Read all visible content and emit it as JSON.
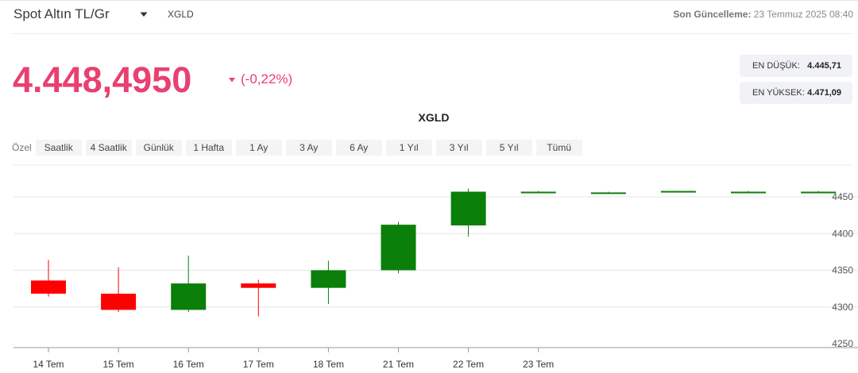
{
  "header": {
    "title": "Spot Altın TL/Gr",
    "symbol": "XGLD",
    "update_label": "Son Güncelleme:",
    "update_value": "23 Temmuz 2025 08:40"
  },
  "quote": {
    "price": "4.448,4950",
    "change": "(-0,22%)",
    "low_label": "EN DÜŞÜK:",
    "low_value": "4.445,71",
    "high_label": "EN YÜKSEK:",
    "high_value": "4.471,09"
  },
  "chart_title": "XGLD",
  "ranges": {
    "custom_label": "Özel",
    "buttons": [
      "Saatlik",
      "4 Saatlik",
      "Günlük",
      "1 Hafta",
      "1 Ay",
      "3 Ay",
      "6 Ay",
      "1 Yıl",
      "3 Yıl",
      "5 Yıl",
      "Tümü"
    ]
  },
  "colors": {
    "price": "#e8416f",
    "up": "#0a7f0a",
    "down": "#ff0000"
  },
  "chart_data": {
    "type": "candlestick",
    "ylim": [
      4250,
      4475
    ],
    "y_ticks": [
      4250,
      4300,
      4350,
      4400,
      4450
    ],
    "x_tick_labels": [
      "14 Tem",
      "15 Tem",
      "16 Tem",
      "17 Tem",
      "18 Tem",
      "21 Tem",
      "22 Tem",
      "23 Tem"
    ],
    "candles": [
      {
        "open": 4336,
        "high": 4364,
        "low": 4314,
        "close": 4318
      },
      {
        "open": 4318,
        "high": 4354,
        "low": 4293,
        "close": 4296
      },
      {
        "open": 4296,
        "high": 4370,
        "low": 4293,
        "close": 4332
      },
      {
        "open": 4332,
        "high": 4337,
        "low": 4287,
        "close": 4326
      },
      {
        "open": 4326,
        "high": 4363,
        "low": 4304,
        "close": 4350
      },
      {
        "open": 4350,
        "high": 4416,
        "low": 4346,
        "close": 4412
      },
      {
        "open": 4411,
        "high": 4461,
        "low": 4396,
        "close": 4457
      },
      {
        "open": 4457,
        "high": 4458,
        "low": 4456,
        "close": 4457
      },
      {
        "open": 4456,
        "high": 4457,
        "low": 4455,
        "close": 4456
      },
      {
        "open": 4457,
        "high": 4458,
        "low": 4457,
        "close": 4458
      },
      {
        "open": 4455,
        "high": 4458,
        "low": 4455,
        "close": 4457
      },
      {
        "open": 4455,
        "high": 4458,
        "low": 4455,
        "close": 4457
      }
    ],
    "grid": true
  }
}
